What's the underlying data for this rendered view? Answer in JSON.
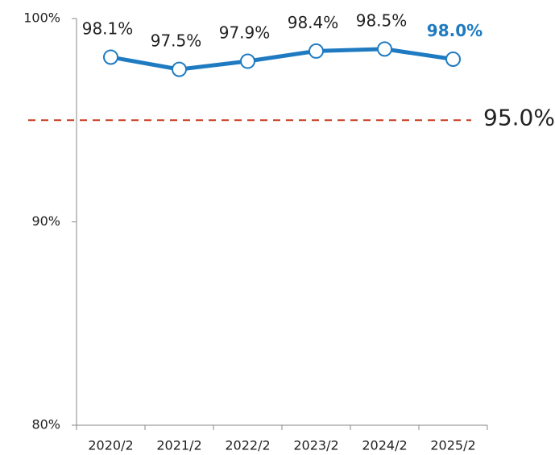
{
  "chart_data": {
    "type": "line",
    "categories": [
      "2020/2",
      "2021/2",
      "2022/2",
      "2023/2",
      "2024/2",
      "2025/2"
    ],
    "series": [
      {
        "color": "#1f7bc1",
        "values": [
          98.1,
          97.5,
          97.9,
          98.4,
          98.5,
          98.0
        ],
        "value_labels": [
          "98.1%",
          "97.5%",
          "97.9%",
          "98.4%",
          "98.5%",
          "98.0%"
        ]
      }
    ],
    "ylim": [
      80,
      100
    ],
    "yticks": [
      {
        "value": 80,
        "label": "80%"
      },
      {
        "value": 90,
        "label": "90%"
      },
      {
        "value": 100,
        "label": "100%"
      }
    ],
    "reference_line": {
      "value": 95.0,
      "label": "95.0%",
      "color": "#c8391e"
    },
    "highlight_index": 5,
    "grid": false
  }
}
